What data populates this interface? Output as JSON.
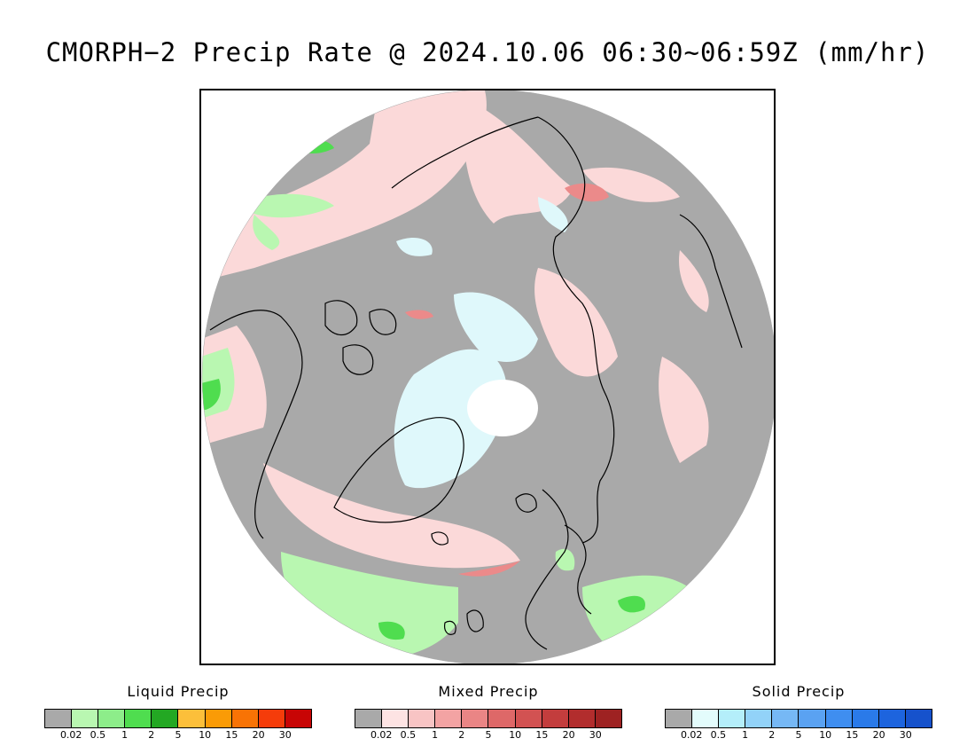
{
  "title": "CMORPH−2 Precip Rate @ 2024.10.06 06:30~06:59Z (mm/hr)",
  "map": {
    "projection": "north-polar-stereographic",
    "colors": {
      "no_precip": "#a9a9a9",
      "land_outline": "#000000",
      "liquid_light": "#b9f7b1",
      "liquid_mid": "#6fe86e",
      "liquid_heavy": "#1fb01f",
      "mixed_light": "#fbd9d9",
      "mixed_mid": "#f3a1a1",
      "mixed_heavy": "#d75555",
      "solid_light": "#dff8fb",
      "no_data_pole": "#ffffff"
    }
  },
  "legends": [
    {
      "title": "Liquid Precip",
      "ticks": [
        "0.02",
        "0.5",
        "1",
        "2",
        "5",
        "10",
        "15",
        "20",
        "30"
      ],
      "colors": [
        "#a9a9a9",
        "#b9f7b1",
        "#8ded8a",
        "#4fdd4f",
        "#23a823",
        "#fcbf3a",
        "#fa9b06",
        "#f87305",
        "#f53c0a",
        "#c80505"
      ]
    },
    {
      "title": "Mixed Precip",
      "ticks": [
        "0.02",
        "0.5",
        "1",
        "2",
        "5",
        "10",
        "15",
        "20",
        "30"
      ],
      "colors": [
        "#a9a9a9",
        "#fde3e3",
        "#f8c4c4",
        "#f3a3a3",
        "#ea8585",
        "#de6868",
        "#d25252",
        "#c33d3d",
        "#b22d2d",
        "#9e2222"
      ]
    },
    {
      "title": "Solid Precip",
      "ticks": [
        "0.02",
        "0.5",
        "1",
        "2",
        "5",
        "10",
        "15",
        "20",
        "30"
      ],
      "colors": [
        "#a9a9a9",
        "#e3fcfc",
        "#b4eefa",
        "#92d2f8",
        "#76b8f5",
        "#5aa2f2",
        "#3f8ef0",
        "#2a7ae9",
        "#1d64de",
        "#1652cc"
      ]
    }
  ]
}
